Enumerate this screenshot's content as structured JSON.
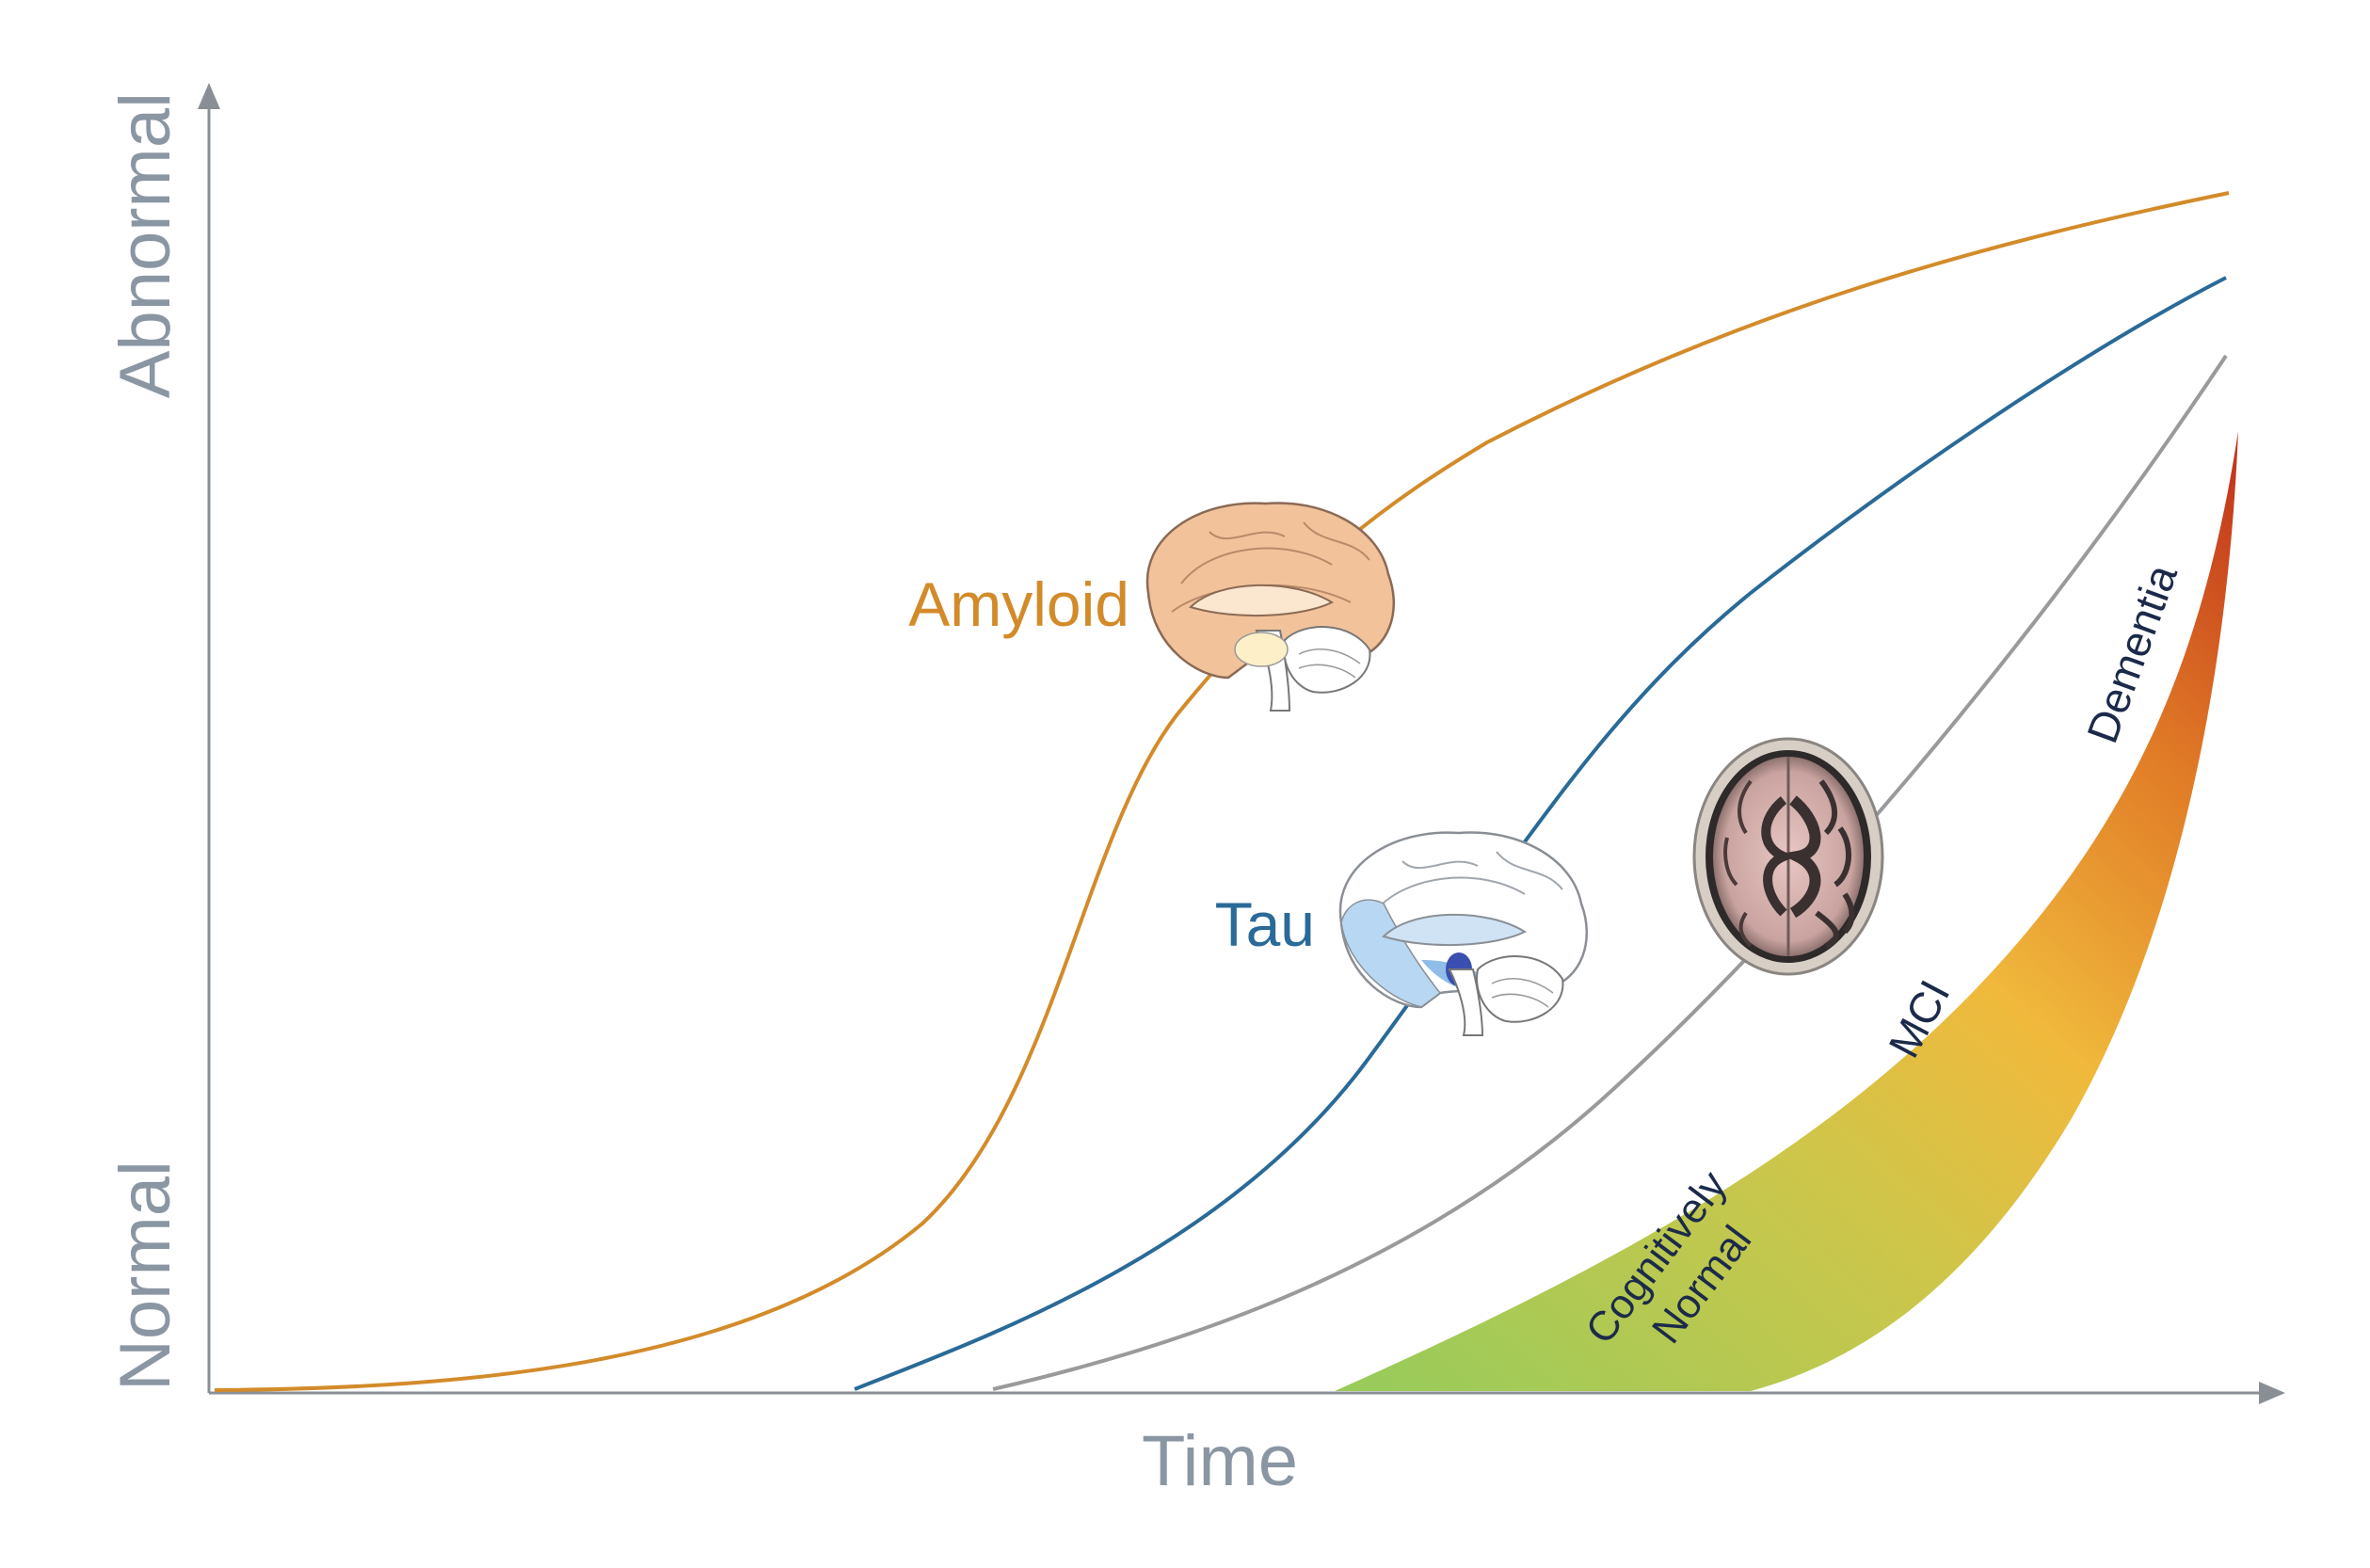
{
  "axes": {
    "x_label": "Time",
    "y_label_top": "Abnormal",
    "y_label_bottom": "Normal",
    "axis_color": "#8a8f95",
    "label_color": "#8b96a3"
  },
  "curves": [
    {
      "key": "amyloid",
      "label": "Amyloid",
      "color": "#d38b2a",
      "icon": "brain-sagittal-amyloid-icon"
    },
    {
      "key": "tau",
      "label": "Tau",
      "color": "#2a6a98",
      "icon": "brain-sagittal-tau-icon"
    },
    {
      "key": "neurodegeneration",
      "label": "",
      "color": "#9a9a9a",
      "icon": "brain-axial-mri-icon"
    }
  ],
  "clinical_band": {
    "stages": [
      "Cognitively Normal",
      "MCI",
      "Dementia"
    ],
    "stage_text_color": "#1c2a4a",
    "gradient": [
      "#9acb5a",
      "#cdc64a",
      "#f0b93c",
      "#e07a26",
      "#c0311c"
    ]
  }
}
